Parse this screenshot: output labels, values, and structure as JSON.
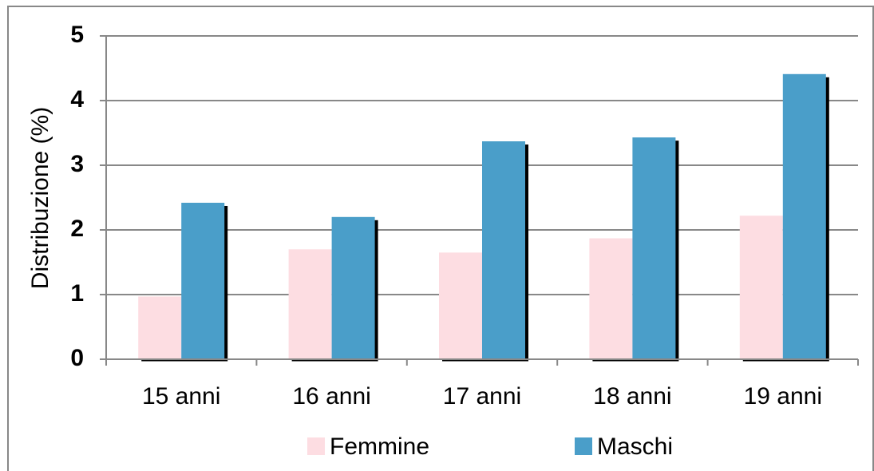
{
  "chart_data": {
    "type": "bar",
    "y_label": "Distribuzione (%)",
    "categories": [
      "15 anni",
      "16 anni",
      "17 anni",
      "18 anni",
      "19 anni"
    ],
    "series": [
      {
        "name": "Femmine",
        "color": "#fddde2",
        "values": [
          0.97,
          1.7,
          1.65,
          1.87,
          2.22
        ]
      },
      {
        "name": "Maschi",
        "color": "#4a9ec9",
        "values": [
          2.42,
          2.2,
          3.37,
          3.43,
          4.41
        ]
      }
    ],
    "ylim": [
      0,
      5
    ],
    "yticks": [
      0,
      1,
      2,
      3,
      4,
      5
    ],
    "grid": true,
    "legend": "bottom"
  }
}
